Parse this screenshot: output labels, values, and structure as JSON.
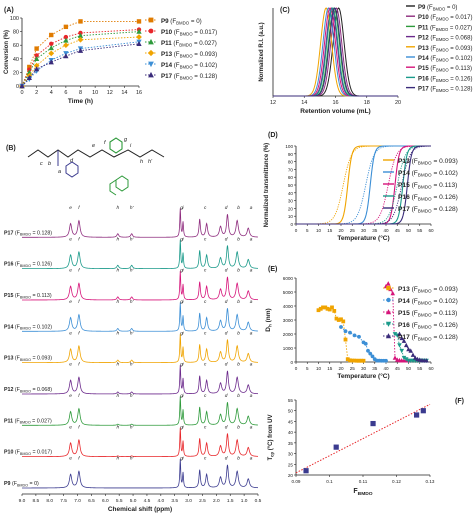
{
  "figure": {
    "panel_labels": [
      "(A)",
      "(B)",
      "(C)",
      "(D)",
      "(E)",
      "(F)"
    ]
  },
  "chart_data": [
    {
      "panel": "(A)",
      "type": "line",
      "xlabel": "Time (h)",
      "ylabel": "Conversion (%)",
      "xlim": [
        0,
        16
      ],
      "ylim": [
        0,
        100
      ],
      "xticks": [
        0,
        2,
        4,
        6,
        8,
        10,
        12,
        14,
        16
      ],
      "yticks": [
        0,
        20,
        40,
        60,
        80,
        100
      ],
      "legend_position": "right",
      "series": [
        {
          "name": "P9 (FBMDO = 0)",
          "label_main": "P9",
          "label_rest": " (F",
          "label_sub": "BMDO",
          "label_end": " = 0)",
          "color": "#e07b00",
          "marker": "square",
          "x": [
            0,
            1,
            2,
            4,
            6,
            8,
            16
          ],
          "y": [
            0,
            28,
            55,
            75,
            87,
            95,
            95
          ]
        },
        {
          "name": "P10 (FBMDO = 0.017)",
          "label_main": "P10",
          "label_rest": " (F",
          "label_sub": "BMDO",
          "label_end": " = 0.017)",
          "color": "#e8262a",
          "marker": "circle",
          "x": [
            0,
            1,
            2,
            4,
            6,
            8,
            16
          ],
          "y": [
            0,
            24,
            45,
            62,
            72,
            78,
            83
          ]
        },
        {
          "name": "P11 (FBMDO = 0.027)",
          "label_main": "P11",
          "label_rest": " (F",
          "label_sub": "BMDO",
          "label_end": " = 0.027)",
          "color": "#2e9a3b",
          "marker": "triangle",
          "x": [
            0,
            1,
            2,
            4,
            6,
            8,
            16
          ],
          "y": [
            0,
            20,
            40,
            56,
            67,
            74,
            80
          ]
        },
        {
          "name": "P13 (FBMDO = 0.093)",
          "label_main": "P13",
          "label_rest": " (F",
          "label_sub": "BMDO",
          "label_end": " = 0.093)",
          "color": "#f0a400",
          "marker": "diamond",
          "x": [
            0,
            1,
            2,
            4,
            6,
            8,
            16
          ],
          "y": [
            0,
            15,
            30,
            48,
            60,
            68,
            72
          ]
        },
        {
          "name": "P14 (FBMDO = 0.102)",
          "label_main": "P14",
          "label_rest": " (F",
          "label_sub": "BMDO",
          "label_end": " = 0.102)",
          "color": "#3c8fd6",
          "marker": "triangle-down",
          "x": [
            0,
            1,
            2,
            4,
            6,
            8,
            16
          ],
          "y": [
            0,
            10,
            22,
            38,
            48,
            55,
            65
          ]
        },
        {
          "name": "P17 (FBMDO = 0.128)",
          "label_main": "P17",
          "label_rest": " (F",
          "label_sub": "BMDO",
          "label_end": " = 0.128)",
          "color": "#3a2b7a",
          "marker": "triangle",
          "x": [
            0,
            1,
            2,
            4,
            6,
            8,
            16
          ],
          "y": [
            0,
            12,
            25,
            35,
            44,
            52,
            62
          ]
        }
      ]
    },
    {
      "panel": "(C)",
      "type": "line",
      "xlabel": "Retention volume (mL)",
      "ylabel": "Normalized R.I. (a.u.)",
      "xlim": [
        12,
        20
      ],
      "ylim": [
        0,
        1
      ],
      "xticks": [
        12,
        14,
        16,
        18,
        20
      ],
      "legend_position": "right",
      "series": [
        {
          "name": "P9 (FBMDO = 0)",
          "label_main": "P9",
          "label_rest": " (F",
          "label_sub": "BMDO",
          "label_end": " = 0)",
          "color": "#222222",
          "peak": 16.2,
          "width": 0.9
        },
        {
          "name": "P10 (FBMDO = 0.017)",
          "label_main": "P10",
          "label_rest": " (F",
          "label_sub": "BMDO",
          "label_end": " = 0.017)",
          "color": "#8e2c7e",
          "peak": 16.05,
          "width": 0.9
        },
        {
          "name": "P11 (FBMDO = 0.027)",
          "label_main": "P11",
          "label_rest": " (F",
          "label_sub": "BMDO",
          "label_end": " = 0.027)",
          "color": "#2e9a3b",
          "peak": 15.9,
          "width": 0.9
        },
        {
          "name": "P12 (FBMDO = 0.068)",
          "label_main": "P12",
          "label_rest": " (F",
          "label_sub": "BMDO",
          "label_end": " = 0.068)",
          "color": "#6c2a8c",
          "peak": 15.75,
          "width": 0.9
        },
        {
          "name": "P13 (FBMDO = 0.093)",
          "label_main": "P13",
          "label_rest": " (F",
          "label_sub": "BMDO",
          "label_end": " = 0.093)",
          "color": "#f0a400",
          "peak": 15.4,
          "width": 0.9
        },
        {
          "name": "P14 (FBMDO = 0.102)",
          "label_main": "P14",
          "label_rest": " (F",
          "label_sub": "BMDO",
          "label_end": " = 0.102)",
          "color": "#3c8fd6",
          "peak": 15.55,
          "width": 0.9
        },
        {
          "name": "P15 (FBMDO = 0.113)",
          "label_main": "P15",
          "label_rest": " (F",
          "label_sub": "BMDO",
          "label_end": " = 0.113)",
          "color": "#d6147a",
          "peak": 15.65,
          "width": 0.9
        },
        {
          "name": "P16 (FBMDO = 0.126)",
          "label_main": "P16",
          "label_rest": " (F",
          "label_sub": "BMDO",
          "label_end": " = 0.126)",
          "color": "#1a9a8a",
          "peak": 15.8,
          "width": 0.9
        },
        {
          "name": "P17 (FBMDO = 0.128)",
          "label_main": "P17",
          "label_rest": " (F",
          "label_sub": "BMDO",
          "label_end": " = 0.128)",
          "color": "#3a2b7a",
          "peak": 15.95,
          "width": 0.9
        }
      ]
    },
    {
      "panel": "(D)",
      "type": "line",
      "xlabel": "Temperature (°C)",
      "ylabel": "Normalized transmittance (%)",
      "xlim": [
        0,
        60
      ],
      "ylim": [
        0,
        100
      ],
      "xticks": [
        0,
        5,
        10,
        15,
        20,
        25,
        30,
        35,
        40,
        45,
        50,
        55,
        60
      ],
      "yticks": [
        0,
        10,
        20,
        30,
        40,
        50,
        60,
        70,
        80,
        90,
        100
      ],
      "legend_position": "right",
      "series": [
        {
          "name": "P13 (FBMDO = 0.093)",
          "label_main": "P13",
          "label_rest": " (F",
          "label_sub": "BMDO",
          "label_end": " = 0.093)",
          "color": "#f0a400",
          "mid": 23,
          "mid_cool": 21
        },
        {
          "name": "P14 (FBMDO = 0.102)",
          "label_main": "P14",
          "label_rest": " (F",
          "label_sub": "BMDO",
          "label_end": " = 0.102)",
          "color": "#3c8fd6",
          "mid": 33,
          "mid_cool": 31
        },
        {
          "name": "P15 (FBMDO = 0.113)",
          "label_main": "P15",
          "label_rest": " (F",
          "label_sub": "BMDO",
          "label_end": " = 0.113)",
          "color": "#d6147a",
          "mid": 44,
          "mid_cool": 41
        },
        {
          "name": "P16 (FBMDO = 0.126)",
          "label_main": "P16",
          "label_rest": " (F",
          "label_sub": "BMDO",
          "label_end": " = 0.126)",
          "color": "#1a9a8a",
          "mid": 47.5,
          "mid_cool": 45
        },
        {
          "name": "P17 (FBMDO = 0.128)",
          "label_main": "P17",
          "label_rest": " (F",
          "label_sub": "BMDO",
          "label_end": " = 0.128)",
          "color": "#3a2b7a",
          "mid": 49.5,
          "mid_cool": 47
        }
      ]
    },
    {
      "panel": "(E)",
      "type": "scatter",
      "xlabel": "Temperature (°C)",
      "ylabel": "Dh (nm)",
      "ylabel_main": "D",
      "ylabel_sub": "h",
      "ylabel_end": " (nm)",
      "xlim": [
        0,
        60
      ],
      "ylim": [
        0,
        6000
      ],
      "xticks": [
        0,
        5,
        10,
        15,
        20,
        25,
        30,
        35,
        40,
        45,
        50,
        55,
        60
      ],
      "yticks": [
        0,
        1000,
        2000,
        3000,
        4000,
        5000,
        6000
      ],
      "legend_position": "right",
      "series": [
        {
          "name": "P13 (FBMDO = 0.093)",
          "label_main": "P13",
          "label_rest": " (F",
          "label_sub": "BMDO",
          "label_end": " = 0.093)",
          "color": "#f0a400",
          "marker": "square",
          "x": [
            10,
            11,
            12,
            13,
            14,
            15,
            16,
            17,
            18,
            19,
            20,
            21,
            22,
            23,
            24,
            25,
            26,
            27,
            28,
            29,
            30
          ],
          "y": [
            3700,
            3800,
            3900,
            3900,
            3800,
            3750,
            3900,
            3650,
            3100,
            3000,
            3050,
            2900,
            1600,
            200,
            120,
            100,
            100,
            90,
            90,
            90,
            90
          ]
        },
        {
          "name": "P14 (FBMDO = 0.102)",
          "label_main": "P14",
          "label_rest": " (F",
          "label_sub": "BMDO",
          "label_end": " = 0.102)",
          "color": "#3c8fd6",
          "marker": "circle",
          "x": [
            20,
            22,
            24,
            26,
            28,
            30,
            31,
            32,
            33,
            34,
            35,
            36,
            37,
            38,
            39,
            40
          ],
          "y": [
            2500,
            2200,
            2100,
            1900,
            1800,
            1400,
            1300,
            800,
            600,
            400,
            200,
            100,
            100,
            90,
            90,
            90
          ]
        },
        {
          "name": "P15 (FBMDO = 0.113)",
          "label_main": "P15",
          "label_rest": " (F",
          "label_sub": "BMDO",
          "label_end": " = 0.113)",
          "color": "#d6147a",
          "marker": "triangle",
          "x": [
            40,
            41,
            42,
            43,
            44,
            45,
            46,
            47,
            48,
            49,
            50
          ],
          "y": [
            5400,
            5600,
            5200,
            4900,
            300,
            150,
            120,
            100,
            100,
            100,
            100
          ]
        },
        {
          "name": "P16 (FBMDO = 0.126)",
          "label_main": "P16",
          "label_rest": " (F",
          "label_sub": "BMDO",
          "label_end": " = 0.126)",
          "color": "#1a9a8a",
          "marker": "triangle-down",
          "x": [
            44,
            45,
            46,
            47,
            48,
            49,
            50,
            51,
            52,
            53,
            54,
            55,
            56,
            57,
            58
          ],
          "y": [
            2000,
            1900,
            1200,
            800,
            300,
            200,
            100,
            100,
            100,
            100,
            100,
            100,
            100,
            100,
            100
          ]
        },
        {
          "name": "P17 (FBMDO = 0.128)",
          "label_main": "P17",
          "label_rest": " (F",
          "label_sub": "BMDO",
          "label_end": " = 0.128)",
          "color": "#3a2b7a",
          "marker": "triangle",
          "x": [
            46,
            47,
            48,
            49,
            50,
            51,
            52,
            53,
            54,
            55,
            56,
            57,
            58
          ],
          "y": [
            2000,
            1700,
            1500,
            1200,
            900,
            800,
            500,
            300,
            200,
            150,
            120,
            100,
            100
          ]
        }
      ]
    },
    {
      "panel": "(F)",
      "type": "scatter",
      "xlabel": "FBMDO",
      "xlabel_main": "F",
      "xlabel_sub": "BMDO",
      "ylabel": "Tcp (°C) from UV",
      "ylabel_main": "T",
      "ylabel_sub": "cp",
      "ylabel_end": " (°C) from UV",
      "xlim": [
        0.09,
        0.13
      ],
      "ylim": [
        20,
        55
      ],
      "xticks": [
        0.09,
        0.1,
        0.11,
        0.12,
        0.13
      ],
      "yticks": [
        20,
        25,
        30,
        35,
        40,
        45,
        50,
        55
      ],
      "marker_color": "#3b3b8f",
      "fit_color": "#e8262a",
      "points": {
        "x": [
          0.093,
          0.102,
          0.113,
          0.126,
          0.128
        ],
        "y": [
          22,
          33,
          44,
          48,
          50
        ]
      },
      "fit": {
        "x": [
          0.09,
          0.13
        ],
        "y": [
          21,
          53
        ]
      }
    },
    {
      "panel": "(B)",
      "type": "nmr_spectra",
      "xlabel": "Chemical shift (ppm)",
      "xlim": [
        9.0,
        0.5
      ],
      "xticks": [
        9.0,
        8.5,
        8.0,
        7.5,
        7.0,
        6.5,
        6.0,
        5.5,
        5.0,
        4.5,
        4.0,
        3.5,
        3.0,
        2.5,
        2.0,
        1.5,
        1.0,
        0.5
      ],
      "tick_labels": [
        "9.0",
        "8.5",
        "8.0",
        "7.5",
        "7.0",
        "6.5",
        "6.0",
        "5.5",
        "5.0",
        "4.5",
        "4.0",
        "3.5",
        "3.0",
        "2.5",
        "2.0",
        "1.5",
        "1.0",
        "0.5"
      ],
      "traces": [
        {
          "name": "P17 (FBMDO = 0.128)",
          "label_main": "P17",
          "label_rest": " (F",
          "label_sub": "BMDO",
          "label_end": " = 0.128)",
          "color": "#8e2c7e",
          "bmdo": 1.0
        },
        {
          "name": "P16 (FBMDO = 0.126)",
          "label_main": "P16",
          "label_rest": " (F",
          "label_sub": "BMDO",
          "label_end": " = 0.126)",
          "color": "#1a9a8a",
          "bmdo": 0.95
        },
        {
          "name": "P15 (FBMDO = 0.113)",
          "label_main": "P15",
          "label_rest": " (F",
          "label_sub": "BMDO",
          "label_end": " = 0.113)",
          "color": "#d6147a",
          "bmdo": 0.85
        },
        {
          "name": "P14 (FBMDO = 0.102)",
          "label_main": "P14",
          "label_rest": " (F",
          "label_sub": "BMDO",
          "label_end": " = 0.102)",
          "color": "#3c8fd6",
          "bmdo": 0.78
        },
        {
          "name": "P13 (FBMDO = 0.093)",
          "label_main": "P13",
          "label_rest": " (F",
          "label_sub": "BMDO",
          "label_end": " = 0.093)",
          "color": "#f0a400",
          "bmdo": 0.72
        },
        {
          "name": "P12 (FBMDO = 0.068)",
          "label_main": "P12",
          "label_rest": " (F",
          "label_sub": "BMDO",
          "label_end": " = 0.068)",
          "color": "#6c2a8c",
          "bmdo": 0.55
        },
        {
          "name": "P11 (FBMDO = 0.027)",
          "label_main": "P11",
          "label_rest": " (F",
          "label_sub": "BMDO",
          "label_end": " = 0.027)",
          "color": "#2e9a3b",
          "bmdo": 0.3
        },
        {
          "name": "P10 (FBMDO = 0.017)",
          "label_main": "P10",
          "label_rest": " (F",
          "label_sub": "BMDO",
          "label_end": " = 0.017)",
          "color": "#e8262a",
          "bmdo": 0.2
        },
        {
          "name": "P9 (FBMDO = 0)",
          "label_main": "P9",
          "label_rest": " (F",
          "label_sub": "BMDO",
          "label_end": " = 0)",
          "color": "#3b3b8f",
          "bmdo": 0.0
        }
      ],
      "peak_labels": [
        {
          "text": "e",
          "ppm": 7.25
        },
        {
          "text": "f",
          "ppm": 6.95
        },
        {
          "text": "h",
          "ppm": 5.55
        },
        {
          "text": "h'",
          "ppm": 5.05
        },
        {
          "text": "g",
          "ppm": 3.25
        },
        {
          "text": "i",
          "ppm": 3.2
        },
        {
          "text": "c",
          "ppm": 2.4
        },
        {
          "text": "d",
          "ppm": 1.65
        },
        {
          "text": "b",
          "ppm": 1.2
        },
        {
          "text": "a",
          "ppm": 0.75
        }
      ],
      "structure_atom_labels": [
        "a",
        "b",
        "c",
        "d",
        "e",
        "f",
        "g",
        "h",
        "h'",
        "i"
      ]
    }
  ]
}
